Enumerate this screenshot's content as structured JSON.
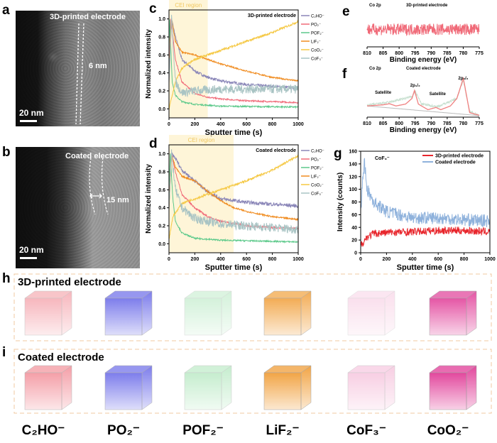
{
  "panel_letters": {
    "a": "a",
    "b": "b",
    "c": "c",
    "d": "d",
    "e": "e",
    "f": "f",
    "g": "g",
    "h": "h",
    "i": "i"
  },
  "tem_a": {
    "title": "3D-printed electrode",
    "thickness": "6 nm",
    "scale": "20 nm"
  },
  "tem_b": {
    "title": "Coated electrode",
    "thickness": "15 nm",
    "scale": "20 nm"
  },
  "cubes": {
    "row_h_title": "3D-printed electrode",
    "row_i_title": "Coated electrode",
    "species": [
      {
        "label": "C₂HO⁻",
        "color": "#f07a86"
      },
      {
        "label": "PO₂⁻",
        "color": "#5a5ae6"
      },
      {
        "label": "POF₂⁻",
        "color": "#8fdca0"
      },
      {
        "label": "LiF₂⁻",
        "color": "#f09a30"
      },
      {
        "label": "CoF₃⁻",
        "color": "#f0a0c8"
      },
      {
        "label": "CoO₂⁻",
        "color": "#e03a96"
      }
    ],
    "intensity_h": [
      0.35,
      0.7,
      0.12,
      0.75,
      0.05,
      0.8
    ],
    "intensity_i": [
      0.6,
      0.7,
      0.3,
      0.85,
      0.3,
      0.9
    ]
  },
  "chart_data": [
    {
      "panel": "c",
      "type": "line",
      "title": "3D-printed electrode",
      "xlabel": "Sputter time (s)",
      "ylabel": "Normalized intensity",
      "xlim": [
        0,
        1000
      ],
      "ylim": [
        -0.1,
        1.1
      ],
      "xticks": [
        "0",
        "200",
        "400",
        "600",
        "800",
        "1000"
      ],
      "yticks": [
        "0.0",
        "0.2",
        "0.4",
        "0.6",
        "0.8",
        "1.0"
      ],
      "region": {
        "label": "CEI region",
        "x": [
          0,
          300
        ]
      },
      "legend": "right",
      "series": [
        {
          "name": "C₂HO⁻",
          "color": "#8a86b8",
          "points": [
            [
              0,
              0.3
            ],
            [
              20,
              1.0
            ],
            [
              50,
              0.8
            ],
            [
              100,
              0.55
            ],
            [
              200,
              0.42
            ],
            [
              300,
              0.35
            ],
            [
              400,
              0.31
            ],
            [
              600,
              0.27
            ],
            [
              800,
              0.25
            ],
            [
              1000,
              0.23
            ]
          ]
        },
        {
          "name": "PO₂⁻",
          "color": "#f06a78",
          "points": [
            [
              0,
              0.5
            ],
            [
              15,
              1.0
            ],
            [
              50,
              0.55
            ],
            [
              100,
              0.3
            ],
            [
              200,
              0.17
            ],
            [
              300,
              0.13
            ],
            [
              400,
              0.11
            ],
            [
              600,
              0.09
            ],
            [
              800,
              0.08
            ],
            [
              1000,
              0.07
            ]
          ]
        },
        {
          "name": "POF₂⁻",
          "color": "#5cc98a",
          "points": [
            [
              0,
              0.6
            ],
            [
              5,
              1.0
            ],
            [
              25,
              0.3
            ],
            [
              50,
              0.15
            ],
            [
              100,
              0.08
            ],
            [
              200,
              0.05
            ],
            [
              400,
              0.03
            ],
            [
              1000,
              0.02
            ]
          ]
        },
        {
          "name": "LiF₂⁻",
          "color": "#f08c20",
          "points": [
            [
              0,
              0.4
            ],
            [
              20,
              1.0
            ],
            [
              50,
              0.75
            ],
            [
              100,
              0.63
            ],
            [
              200,
              0.6
            ],
            [
              300,
              0.55
            ],
            [
              400,
              0.5
            ],
            [
              600,
              0.42
            ],
            [
              800,
              0.35
            ],
            [
              1000,
              0.31
            ]
          ]
        },
        {
          "name": "CoO₂⁻",
          "color": "#f5c843",
          "points": [
            [
              0,
              0.0
            ],
            [
              50,
              0.3
            ],
            [
              100,
              0.45
            ],
            [
              200,
              0.55
            ],
            [
              300,
              0.6
            ],
            [
              400,
              0.65
            ],
            [
              600,
              0.75
            ],
            [
              800,
              0.85
            ],
            [
              1000,
              0.97
            ]
          ]
        },
        {
          "name": "CoF₃⁻",
          "color": "#a9c4c4",
          "points": [
            [
              0,
              0.35
            ],
            [
              20,
              1.0
            ],
            [
              50,
              0.3
            ],
            [
              100,
              0.18
            ],
            [
              200,
              0.2
            ],
            [
              400,
              0.22
            ],
            [
              600,
              0.22
            ],
            [
              1000,
              0.22
            ]
          ]
        }
      ]
    },
    {
      "panel": "d",
      "type": "line",
      "title": "Coated electrode",
      "xlabel": "Sputter time (s)",
      "ylabel": "Normalized intensity",
      "xlim": [
        0,
        1000
      ],
      "ylim": [
        -0.1,
        1.1
      ],
      "xticks": [
        "0",
        "200",
        "400",
        "600",
        "800",
        "1000"
      ],
      "yticks": [
        "0.0",
        "0.2",
        "0.4",
        "0.6",
        "0.8",
        "1.0"
      ],
      "region": {
        "label": "CEI region",
        "x": [
          0,
          500
        ]
      },
      "legend": "right",
      "series": [
        {
          "name": "C₂HO⁻",
          "color": "#8a86b8",
          "points": [
            [
              0,
              0.4
            ],
            [
              20,
              1.0
            ],
            [
              50,
              0.95
            ],
            [
              100,
              0.82
            ],
            [
              200,
              0.7
            ],
            [
              300,
              0.58
            ],
            [
              400,
              0.5
            ],
            [
              500,
              0.48
            ],
            [
              600,
              0.46
            ],
            [
              800,
              0.44
            ],
            [
              1000,
              0.42
            ]
          ]
        },
        {
          "name": "PO₂⁻",
          "color": "#f06a78",
          "points": [
            [
              0,
              0.5
            ],
            [
              20,
              1.0
            ],
            [
              50,
              0.8
            ],
            [
              100,
              0.55
            ],
            [
              200,
              0.4
            ],
            [
              300,
              0.3
            ],
            [
              400,
              0.25
            ],
            [
              600,
              0.2
            ],
            [
              800,
              0.18
            ],
            [
              1000,
              0.17
            ]
          ]
        },
        {
          "name": "POF₂⁻",
          "color": "#5cc98a",
          "points": [
            [
              0,
              0.6
            ],
            [
              10,
              1.0
            ],
            [
              30,
              0.5
            ],
            [
              50,
              0.25
            ],
            [
              100,
              0.12
            ],
            [
              200,
              0.06
            ],
            [
              400,
              0.04
            ],
            [
              1000,
              0.02
            ]
          ]
        },
        {
          "name": "LiF₂⁻",
          "color": "#f08c20",
          "points": [
            [
              0,
              0.4
            ],
            [
              20,
              1.0
            ],
            [
              50,
              0.85
            ],
            [
              100,
              0.75
            ],
            [
              200,
              0.7
            ],
            [
              300,
              0.58
            ],
            [
              400,
              0.48
            ],
            [
              500,
              0.4
            ],
            [
              600,
              0.36
            ],
            [
              800,
              0.3
            ],
            [
              1000,
              0.27
            ]
          ]
        },
        {
          "name": "CoO₂⁻",
          "color": "#f5c843",
          "points": [
            [
              0,
              0.05
            ],
            [
              30,
              0.3
            ],
            [
              100,
              0.45
            ],
            [
              200,
              0.5
            ],
            [
              300,
              0.55
            ],
            [
              400,
              0.6
            ],
            [
              600,
              0.7
            ],
            [
              800,
              0.82
            ],
            [
              1000,
              0.98
            ]
          ]
        },
        {
          "name": "CoF₃⁻",
          "color": "#a9c4c4",
          "points": [
            [
              0,
              0.4
            ],
            [
              20,
              1.0
            ],
            [
              50,
              0.6
            ],
            [
              100,
              0.4
            ],
            [
              200,
              0.28
            ],
            [
              300,
              0.25
            ],
            [
              400,
              0.22
            ],
            [
              600,
              0.2
            ],
            [
              800,
              0.18
            ],
            [
              1000,
              0.16
            ]
          ]
        }
      ]
    },
    {
      "panel": "e",
      "type": "line",
      "title": "3D-printed electrode",
      "annotation": "Co 2p",
      "xlabel": "Binding energy (eV)",
      "xlim": [
        810,
        775
      ],
      "ylim": [
        0,
        1
      ],
      "xticks": [
        "810",
        "805",
        "800",
        "795",
        "790",
        "785",
        "780",
        "775"
      ],
      "series": [
        {
          "color": "#f06a78",
          "points": [
            [
              810,
              0.6
            ],
            [
              775,
              0.6
            ]
          ]
        }
      ]
    },
    {
      "panel": "f",
      "type": "line",
      "title": "Coated electrode",
      "annotation": "Co 2p",
      "xlabel": "Binding energy (eV)",
      "xlim": [
        810,
        775
      ],
      "ylim": [
        0,
        1.2
      ],
      "xticks": [
        "810",
        "805",
        "800",
        "795",
        "790",
        "785",
        "780",
        "775"
      ],
      "peak_labels": [
        {
          "text": "Satellite",
          "x": 805
        },
        {
          "text": "2p₁/₂",
          "x": 795
        },
        {
          "text": "Satellite",
          "x": 788
        },
        {
          "text": "2p₃/₂",
          "x": 780
        }
      ],
      "series": [
        {
          "color": "#c8e0d0",
          "points": [
            [
              810,
              0.32
            ],
            [
              803,
              0.4
            ],
            [
              796,
              0.55
            ],
            [
              795,
              0.7
            ],
            [
              793,
              0.35
            ],
            [
              788,
              0.28
            ],
            [
              782,
              0.5
            ],
            [
              780,
              1.0
            ],
            [
              778,
              0.15
            ],
            [
              775,
              0.05
            ]
          ]
        },
        {
          "color": "#bbbbbb",
          "points": [
            [
              810,
              0.3
            ],
            [
              775,
              0.04
            ]
          ]
        },
        {
          "color": "#f08080",
          "points": [
            [
              810,
              0.3
            ],
            [
              805,
              0.33
            ],
            [
              803,
              0.36
            ],
            [
              801,
              0.3
            ],
            [
              798,
              0.35
            ],
            [
              796,
              0.5
            ],
            [
              795.2,
              0.72
            ],
            [
              794,
              0.35
            ],
            [
              791,
              0.2
            ],
            [
              788.5,
              0.26
            ],
            [
              787,
              0.2
            ],
            [
              784,
              0.3
            ],
            [
              782,
              0.5
            ],
            [
              780.5,
              0.9
            ],
            [
              780,
              1.05
            ],
            [
              779,
              0.6
            ],
            [
              778,
              0.12
            ],
            [
              775,
              0.05
            ]
          ]
        }
      ]
    },
    {
      "panel": "g",
      "type": "line",
      "annotation": "CoF₃⁻",
      "xlabel": "Sputter time (s)",
      "ylabel": "Intensity (counts)",
      "xlim": [
        0,
        1000
      ],
      "ylim": [
        0,
        160
      ],
      "xticks": [
        "0",
        "200",
        "400",
        "600",
        "800",
        "1000"
      ],
      "yticks": [
        "0",
        "20",
        "40",
        "60",
        "80",
        "100",
        "120",
        "140",
        "160"
      ],
      "legend": "top-right",
      "series": [
        {
          "name": "3D-printed electrode",
          "color": "#e8262c",
          "points": [
            [
              0,
              12
            ],
            [
              50,
              25
            ],
            [
              100,
              30
            ],
            [
              200,
              32
            ],
            [
              400,
              33
            ],
            [
              600,
              35
            ],
            [
              800,
              35
            ],
            [
              1000,
              33
            ]
          ]
        },
        {
          "name": "Coated electrode",
          "color": "#8fb2dc",
          "points": [
            [
              0,
              60
            ],
            [
              20,
              130
            ],
            [
              30,
              140
            ],
            [
              50,
              100
            ],
            [
              100,
              80
            ],
            [
              200,
              65
            ],
            [
              400,
              55
            ],
            [
              600,
              55
            ],
            [
              800,
              52
            ],
            [
              1000,
              50
            ]
          ]
        }
      ]
    }
  ]
}
